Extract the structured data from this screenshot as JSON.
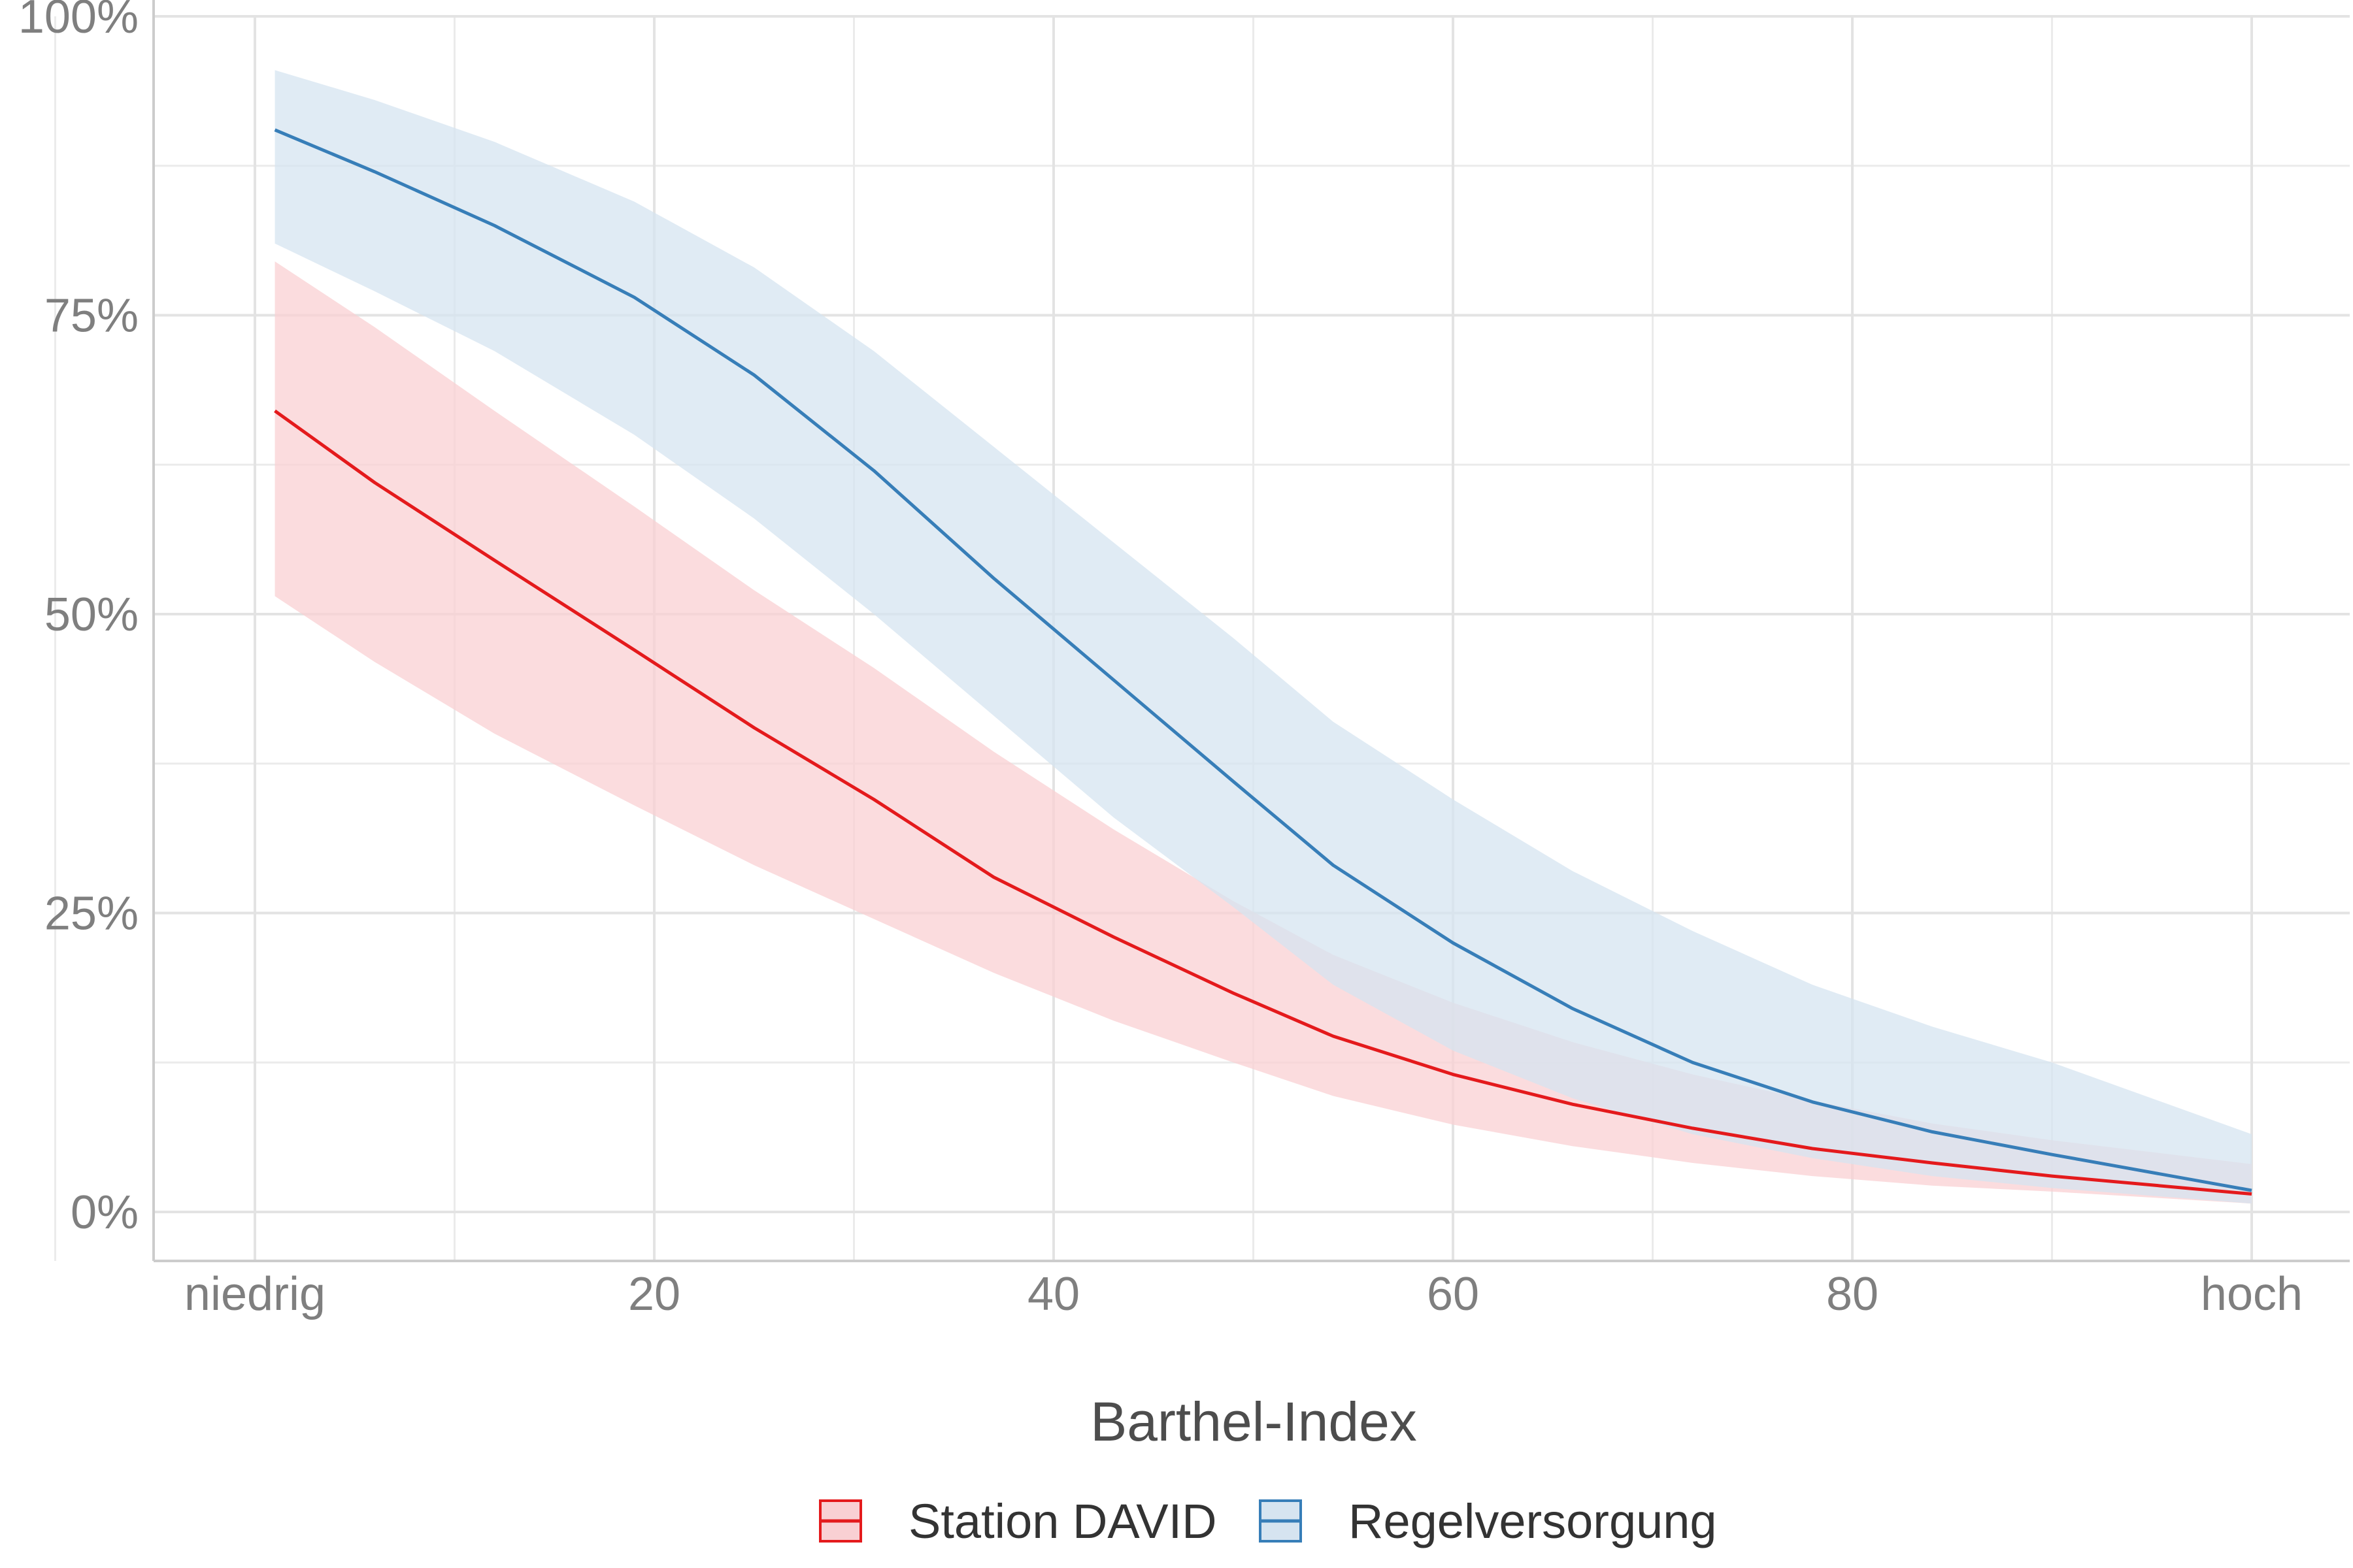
{
  "chart_data": {
    "type": "line",
    "xlabel": "Barthel-Index",
    "ylabel": "",
    "xlim": [
      -10,
      110
    ],
    "ylim": [
      -0.11,
      1.0
    ],
    "x_ticks": [
      {
        "value": 0,
        "label": "niedrig"
      },
      {
        "value": 20,
        "label": "20"
      },
      {
        "value": 40,
        "label": "40"
      },
      {
        "value": 60,
        "label": "60"
      },
      {
        "value": 80,
        "label": "80"
      },
      {
        "value": 100,
        "label": "hoch"
      }
    ],
    "y_ticks": [
      {
        "value": 0,
        "label": "0%"
      },
      {
        "value": 0.25,
        "label": "25%"
      },
      {
        "value": 0.5,
        "label": "50%"
      },
      {
        "value": 0.75,
        "label": "75%"
      },
      {
        "value": 1.0,
        "label": "100%"
      }
    ],
    "x_minor_ticks": [
      -10,
      10,
      30,
      50,
      70,
      90
    ],
    "y_minor_ticks": [
      0.125,
      0.375,
      0.625,
      0.875
    ],
    "grid": true,
    "legend_position": "bottom",
    "x": [
      1,
      6,
      12,
      19,
      25,
      31,
      37,
      43,
      49,
      54,
      60,
      66,
      72,
      78,
      84,
      90,
      100
    ],
    "series": [
      {
        "name": "Station DAVID",
        "color": "#E41A1C",
        "fill": "#F9D0D3",
        "values": [
          0.67,
          0.61,
          0.545,
          0.47,
          0.405,
          0.345,
          0.28,
          0.23,
          0.183,
          0.147,
          0.115,
          0.09,
          0.07,
          0.053,
          0.041,
          0.03,
          0.015
        ],
        "lower": [
          0.515,
          0.46,
          0.4,
          0.34,
          0.29,
          0.245,
          0.2,
          0.16,
          0.125,
          0.097,
          0.073,
          0.055,
          0.041,
          0.03,
          0.022,
          0.017,
          0.007
        ],
        "upper": [
          0.795,
          0.74,
          0.67,
          0.59,
          0.52,
          0.455,
          0.385,
          0.32,
          0.26,
          0.215,
          0.175,
          0.142,
          0.115,
          0.093,
          0.074,
          0.06,
          0.04
        ]
      },
      {
        "name": "Regelversorgung",
        "color": "#377EB8",
        "fill": "#D6E4F0",
        "values": [
          0.905,
          0.87,
          0.825,
          0.765,
          0.7,
          0.62,
          0.53,
          0.445,
          0.36,
          0.29,
          0.225,
          0.17,
          0.125,
          0.092,
          0.067,
          0.048,
          0.018
        ],
        "lower": [
          0.81,
          0.77,
          0.72,
          0.65,
          0.58,
          0.5,
          0.415,
          0.33,
          0.255,
          0.19,
          0.135,
          0.095,
          0.065,
          0.045,
          0.03,
          0.02,
          0.007
        ],
        "upper": [
          0.955,
          0.93,
          0.895,
          0.845,
          0.79,
          0.72,
          0.64,
          0.56,
          0.48,
          0.41,
          0.345,
          0.285,
          0.235,
          0.19,
          0.155,
          0.125,
          0.065
        ]
      }
    ]
  }
}
